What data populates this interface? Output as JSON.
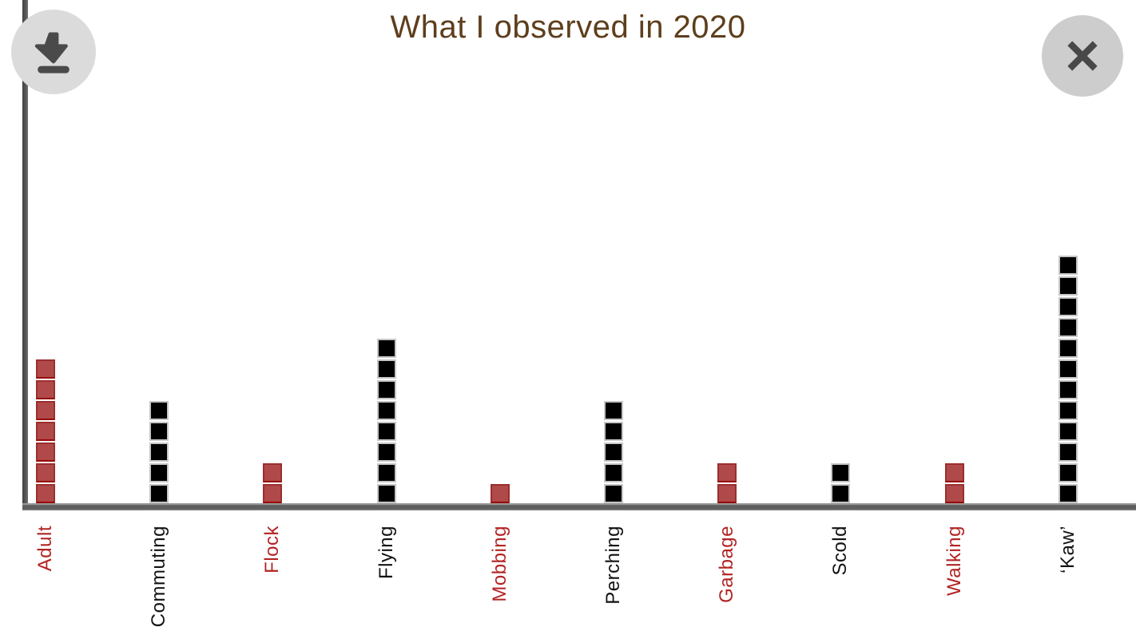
{
  "title": "What I observed in 2020",
  "toolbar": {
    "download_label": "download",
    "close_label": "close"
  },
  "colors": {
    "title": "#5e3e1c",
    "axis": "#5e5e5e",
    "red_fill": "#b04a4a",
    "red_border": "#9c2e2e",
    "black_fill": "#000000",
    "black_border": "#c6c6c6",
    "red_label": "#b22424",
    "black_label": "#121212",
    "button_bg": "#d6d6d6",
    "button_glyph": "#4a4a4a"
  },
  "chart_data": {
    "type": "bar",
    "style": "waffle-unit-squares",
    "title": "What I observed in 2020",
    "categories": [
      "Adult",
      "Commuting",
      "Flock",
      "Flying",
      "Mobbing",
      "Perching",
      "Garbage",
      "Scold",
      "Walking",
      "‘Kaw’"
    ],
    "values": [
      7,
      5,
      2,
      8,
      1,
      5,
      2,
      2,
      2,
      12
    ],
    "series_colors": [
      "red",
      "black",
      "red",
      "black",
      "red",
      "black",
      "red",
      "black",
      "red",
      "black"
    ],
    "unit_value": 1,
    "xlabel": "",
    "ylabel": "",
    "ylim": [
      0,
      12
    ],
    "grid": false,
    "legend": false,
    "x_labels_rotated_degrees": 90
  }
}
